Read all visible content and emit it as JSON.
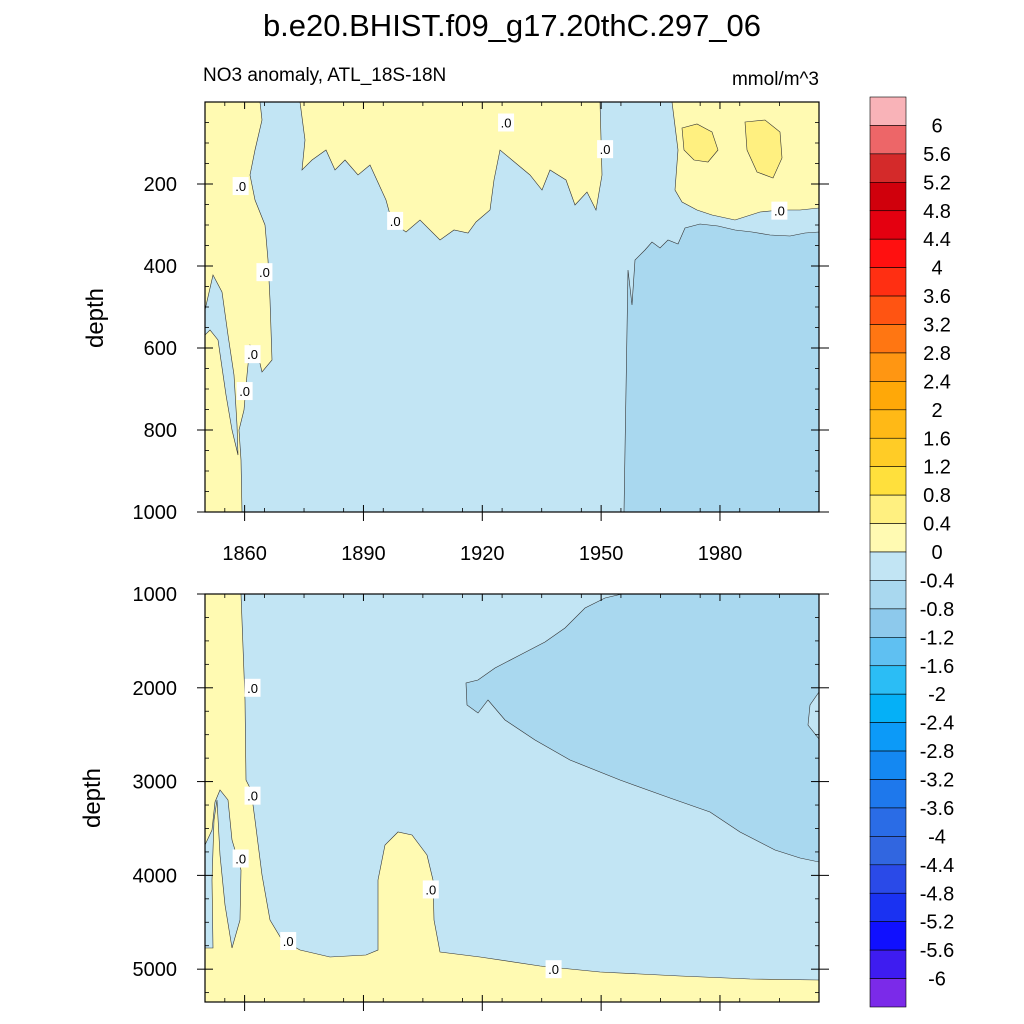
{
  "chart_data": {
    "type": "heatmap",
    "title": "b.e20.BHIST.f09_g17.20thC.297_06",
    "subtitle_left": "NO3 anomaly, ATL_18S-18N",
    "subtitle_right": "mmol/m^3",
    "xlim": [
      1850,
      2005
    ],
    "x_ticks": [
      1860,
      1890,
      1920,
      1950,
      1980
    ],
    "panels": [
      {
        "ylabel": "depth",
        "ylim": [
          1000,
          0
        ],
        "y_ticks": [
          200,
          400,
          600,
          800,
          1000
        ],
        "contour_labels": [
          {
            "text": ".0",
            "x": 1859,
            "depth": 205
          },
          {
            "text": ".0",
            "x": 1865,
            "depth": 415
          },
          {
            "text": ".0",
            "x": 1862,
            "depth": 615
          },
          {
            "text": ".0",
            "x": 1860,
            "depth": 705
          },
          {
            "text": ".0",
            "x": 1898,
            "depth": 290
          },
          {
            "text": ".0",
            "x": 1926,
            "depth": 50
          },
          {
            "text": ".0",
            "x": 1951,
            "depth": 115
          },
          {
            "text": ".0",
            "x": 1995,
            "depth": 265
          }
        ]
      },
      {
        "ylabel": "depth",
        "ylim": [
          5350,
          1000
        ],
        "y_ticks": [
          1000,
          2000,
          3000,
          4000,
          5000
        ],
        "contour_labels": [
          {
            "text": ".0",
            "x": 1862,
            "depth": 2000
          },
          {
            "text": ".0",
            "x": 1862,
            "depth": 3150
          },
          {
            "text": ".0",
            "x": 1859,
            "depth": 3820
          },
          {
            "text": ".0",
            "x": 1871,
            "depth": 4700
          },
          {
            "text": ".0",
            "x": 1907,
            "depth": 4150
          },
          {
            "text": ".0",
            "x": 1938,
            "depth": 5000
          }
        ]
      }
    ],
    "colorbar": {
      "labels": [
        "6",
        "5.6",
        "5.2",
        "4.8",
        "4.4",
        "4",
        "3.6",
        "3.2",
        "2.8",
        "2.4",
        "2",
        "1.6",
        "1.2",
        "0.8",
        "0.4",
        "0",
        "-0.4",
        "-0.8",
        "-1.2",
        "-1.6",
        "-2",
        "-2.4",
        "-2.8",
        "-3.2",
        "-3.6",
        "-4",
        "-4.4",
        "-4.8",
        "-5.2",
        "-5.6",
        "-6"
      ],
      "colors": [
        "#f9b3b8",
        "#ed6668",
        "#d42a2a",
        "#d0000c",
        "#e40010",
        "#ff1010",
        "#ff2f12",
        "#ff5412",
        "#ff7612",
        "#ff9612",
        "#ffa808",
        "#ffb916",
        "#ffcc26",
        "#ffe03c",
        "#fff080",
        "#fffab2",
        "#c2e5f4",
        "#a9d8ef",
        "#8dc9ec",
        "#5fc0f2",
        "#2bbdf5",
        "#05b0f7",
        "#0c9af8",
        "#1488f2",
        "#1e78ec",
        "#2a6ce6",
        "#3166e0",
        "#2a4ae8",
        "#1a32f2",
        "#1010ff",
        "#3e1cf0",
        "#7b2ae9"
      ]
    }
  }
}
